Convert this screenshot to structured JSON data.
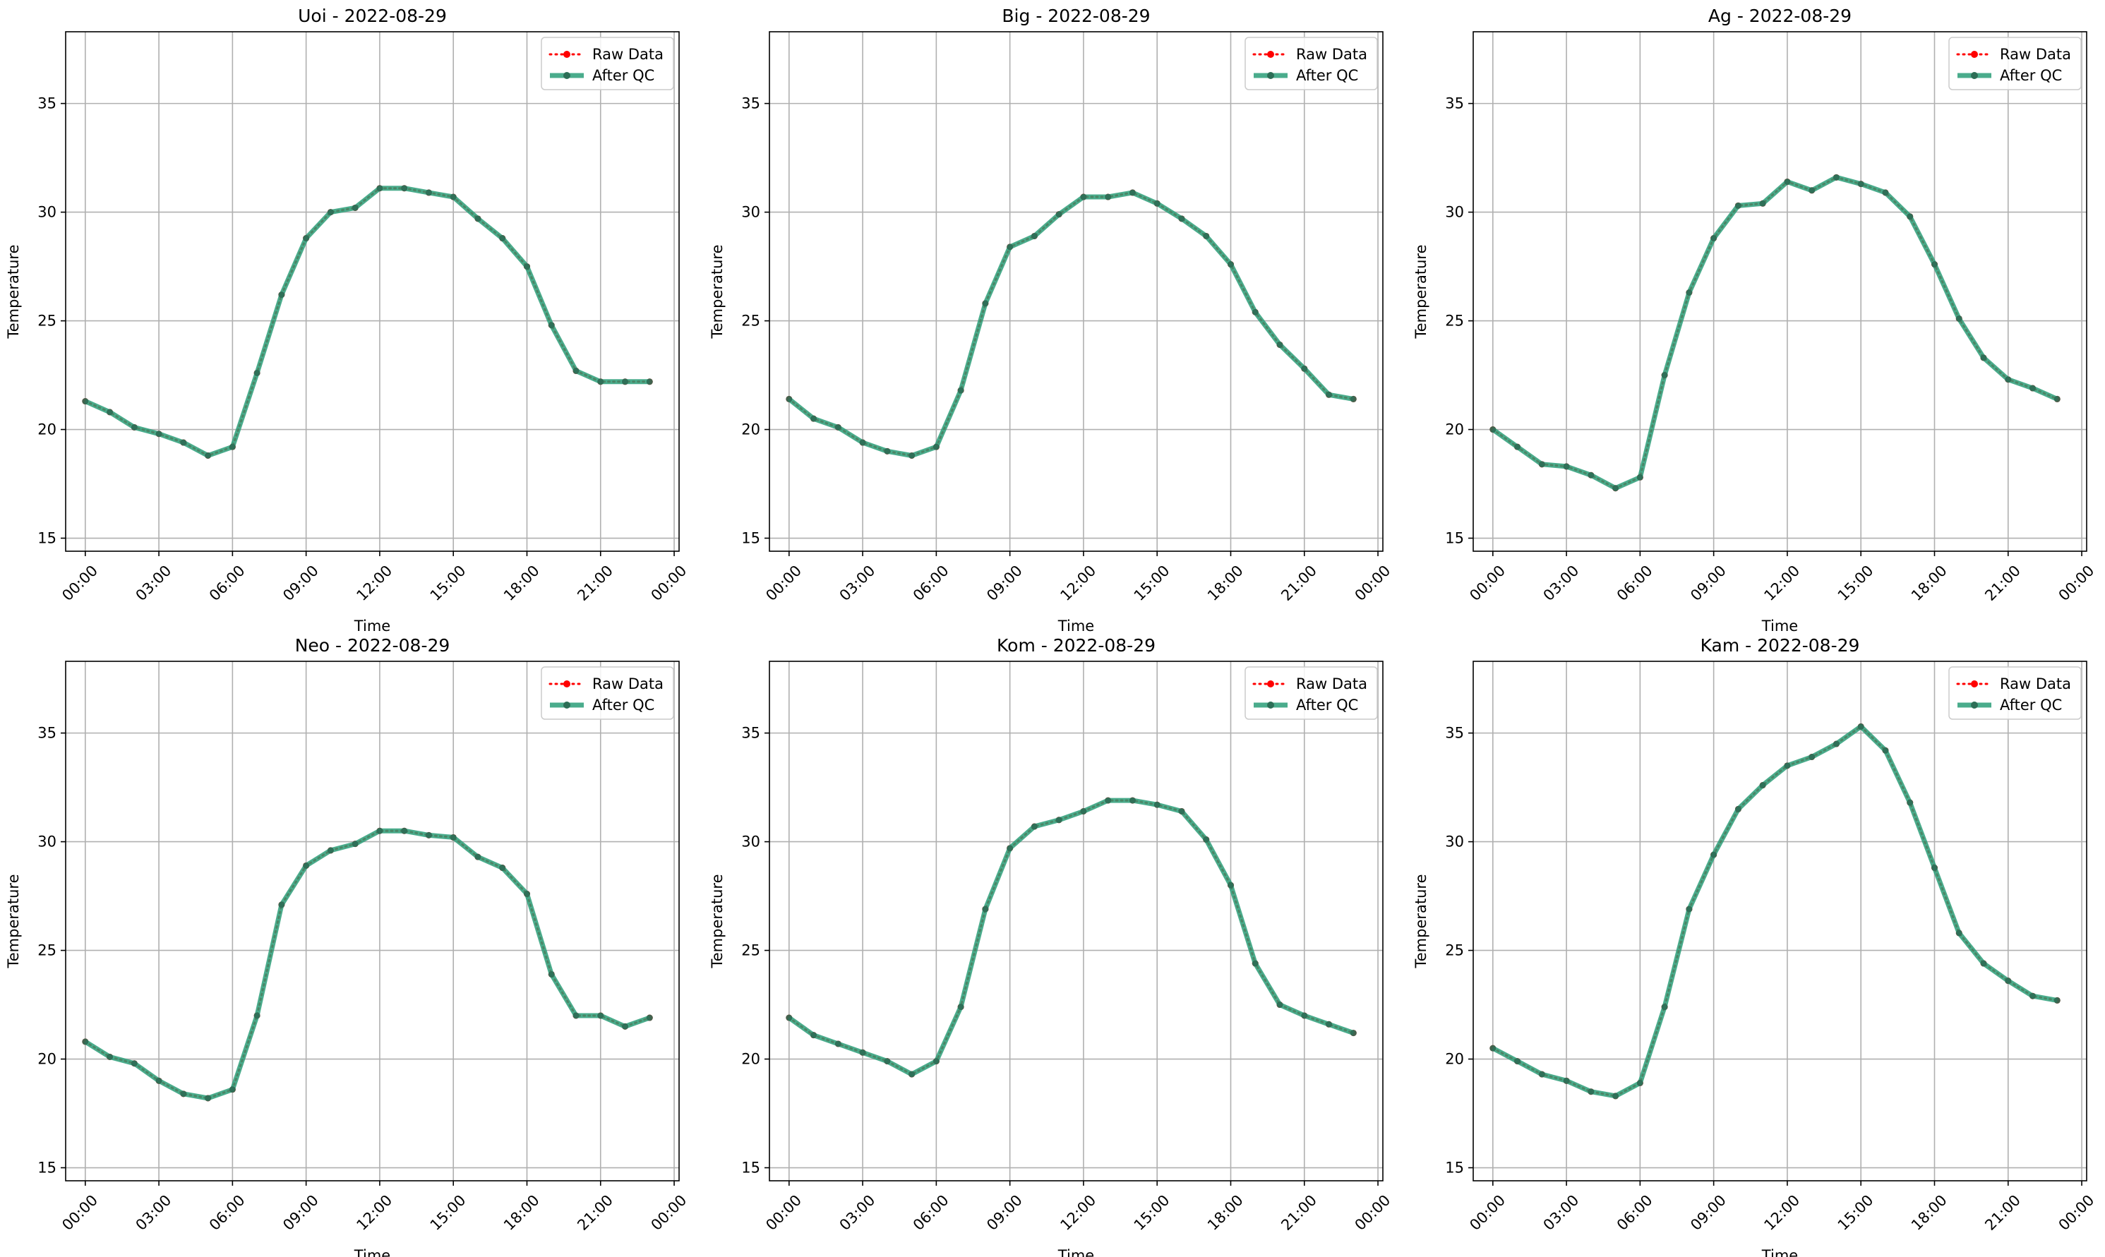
{
  "colors": {
    "raw": "#ff0000",
    "qc": "#2a9d78",
    "grid": "#b0b0b0",
    "axes": "#000000"
  },
  "chart_data": [
    {
      "type": "line",
      "title": "Uoi - 2022-08-29",
      "xlabel": "Time",
      "ylabel": "Temperature",
      "ylim": [
        14.4,
        38.3
      ],
      "yticks": [
        15,
        20,
        25,
        30,
        35
      ],
      "xlim": [
        -0.8,
        24.2
      ],
      "xticks": [
        0,
        3,
        6,
        9,
        12,
        15,
        18,
        21,
        24
      ],
      "xtick_labels": [
        "00:00",
        "03:00",
        "06:00",
        "09:00",
        "12:00",
        "15:00",
        "18:00",
        "21:00",
        "00:00"
      ],
      "grid": true,
      "legend": "upper-right",
      "x": [
        0,
        1,
        2,
        3,
        4,
        5,
        6,
        7,
        8,
        9,
        10,
        11,
        12,
        13,
        14,
        15,
        16,
        17,
        18,
        19,
        20,
        21,
        22,
        23
      ],
      "series": [
        {
          "name": "Raw Data",
          "values": [
            21.3,
            20.8,
            20.1,
            19.8,
            19.4,
            18.8,
            19.2,
            22.6,
            26.2,
            28.8,
            30.0,
            30.2,
            31.1,
            31.1,
            30.9,
            30.7,
            29.7,
            28.8,
            27.5,
            24.8,
            22.7,
            22.2,
            22.2,
            22.2
          ]
        },
        {
          "name": "After QC",
          "values": [
            21.3,
            20.8,
            20.1,
            19.8,
            19.4,
            18.8,
            19.2,
            22.6,
            26.2,
            28.8,
            30.0,
            30.2,
            31.1,
            31.1,
            30.9,
            30.7,
            29.7,
            28.8,
            27.5,
            24.8,
            22.7,
            22.2,
            22.2,
            22.2
          ]
        }
      ]
    },
    {
      "type": "line",
      "title": "Big - 2022-08-29",
      "xlabel": "Time",
      "ylabel": "Temperature",
      "ylim": [
        14.4,
        38.3
      ],
      "yticks": [
        15,
        20,
        25,
        30,
        35
      ],
      "xlim": [
        -0.8,
        24.2
      ],
      "xticks": [
        0,
        3,
        6,
        9,
        12,
        15,
        18,
        21,
        24
      ],
      "xtick_labels": [
        "00:00",
        "03:00",
        "06:00",
        "09:00",
        "12:00",
        "15:00",
        "18:00",
        "21:00",
        "00:00"
      ],
      "grid": true,
      "legend": "upper-right",
      "x": [
        0,
        1,
        2,
        3,
        4,
        5,
        6,
        7,
        8,
        9,
        10,
        11,
        12,
        13,
        14,
        15,
        16,
        17,
        18,
        19,
        20,
        21,
        22,
        23
      ],
      "series": [
        {
          "name": "Raw Data",
          "values": [
            21.4,
            20.5,
            20.1,
            19.4,
            19.0,
            18.8,
            19.2,
            21.8,
            25.8,
            28.4,
            28.9,
            29.9,
            30.7,
            30.7,
            30.9,
            30.4,
            29.7,
            28.9,
            27.6,
            25.4,
            23.9,
            22.8,
            21.6,
            21.4
          ]
        },
        {
          "name": "After QC",
          "values": [
            21.4,
            20.5,
            20.1,
            19.4,
            19.0,
            18.8,
            19.2,
            21.8,
            25.8,
            28.4,
            28.9,
            29.9,
            30.7,
            30.7,
            30.9,
            30.4,
            29.7,
            28.9,
            27.6,
            25.4,
            23.9,
            22.8,
            21.6,
            21.4
          ]
        }
      ]
    },
    {
      "type": "line",
      "title": "Ag - 2022-08-29",
      "xlabel": "Time",
      "ylabel": "Temperature",
      "ylim": [
        14.4,
        38.3
      ],
      "yticks": [
        15,
        20,
        25,
        30,
        35
      ],
      "xlim": [
        -0.8,
        24.2
      ],
      "xticks": [
        0,
        3,
        6,
        9,
        12,
        15,
        18,
        21,
        24
      ],
      "xtick_labels": [
        "00:00",
        "03:00",
        "06:00",
        "09:00",
        "12:00",
        "15:00",
        "18:00",
        "21:00",
        "00:00"
      ],
      "grid": true,
      "legend": "upper-right",
      "x": [
        0,
        1,
        2,
        3,
        4,
        5,
        6,
        7,
        8,
        9,
        10,
        11,
        12,
        13,
        14,
        15,
        16,
        17,
        18,
        19,
        20,
        21,
        22,
        23
      ],
      "series": [
        {
          "name": "Raw Data",
          "values": [
            20.0,
            19.2,
            18.4,
            18.3,
            17.9,
            17.3,
            17.8,
            22.5,
            26.3,
            28.8,
            30.3,
            30.4,
            31.4,
            31.0,
            31.6,
            31.3,
            30.9,
            29.8,
            27.6,
            25.1,
            23.3,
            22.3,
            21.9,
            21.4
          ]
        },
        {
          "name": "After QC",
          "values": [
            20.0,
            19.2,
            18.4,
            18.3,
            17.9,
            17.3,
            17.8,
            22.5,
            26.3,
            28.8,
            30.3,
            30.4,
            31.4,
            31.0,
            31.6,
            31.3,
            30.9,
            29.8,
            27.6,
            25.1,
            23.3,
            22.3,
            21.9,
            21.4
          ]
        }
      ]
    },
    {
      "type": "line",
      "title": "Neo - 2022-08-29",
      "xlabel": "Time",
      "ylabel": "Temperature",
      "ylim": [
        14.4,
        38.3
      ],
      "yticks": [
        15,
        20,
        25,
        30,
        35
      ],
      "xlim": [
        -0.8,
        24.2
      ],
      "xticks": [
        0,
        3,
        6,
        9,
        12,
        15,
        18,
        21,
        24
      ],
      "xtick_labels": [
        "00:00",
        "03:00",
        "06:00",
        "09:00",
        "12:00",
        "15:00",
        "18:00",
        "21:00",
        "00:00"
      ],
      "grid": true,
      "legend": "upper-right",
      "x": [
        0,
        1,
        2,
        3,
        4,
        5,
        6,
        7,
        8,
        9,
        10,
        11,
        12,
        13,
        14,
        15,
        16,
        17,
        18,
        19,
        20,
        21,
        22,
        23
      ],
      "series": [
        {
          "name": "Raw Data",
          "values": [
            20.8,
            20.1,
            19.8,
            19.0,
            18.4,
            18.2,
            18.6,
            22.0,
            27.1,
            28.9,
            29.6,
            29.9,
            30.5,
            30.5,
            30.3,
            30.2,
            29.3,
            28.8,
            27.6,
            23.9,
            22.0,
            22.0,
            21.5,
            21.9
          ]
        },
        {
          "name": "After QC",
          "values": [
            20.8,
            20.1,
            19.8,
            19.0,
            18.4,
            18.2,
            18.6,
            22.0,
            27.1,
            28.9,
            29.6,
            29.9,
            30.5,
            30.5,
            30.3,
            30.2,
            29.3,
            28.8,
            27.6,
            23.9,
            22.0,
            22.0,
            21.5,
            21.9
          ]
        }
      ]
    },
    {
      "type": "line",
      "title": "Kom - 2022-08-29",
      "xlabel": "Time",
      "ylabel": "Temperature",
      "ylim": [
        14.4,
        38.3
      ],
      "yticks": [
        15,
        20,
        25,
        30,
        35
      ],
      "xlim": [
        -0.8,
        24.2
      ],
      "xticks": [
        0,
        3,
        6,
        9,
        12,
        15,
        18,
        21,
        24
      ],
      "xtick_labels": [
        "00:00",
        "03:00",
        "06:00",
        "09:00",
        "12:00",
        "15:00",
        "18:00",
        "21:00",
        "00:00"
      ],
      "grid": true,
      "legend": "upper-right",
      "x": [
        0,
        1,
        2,
        3,
        4,
        5,
        6,
        7,
        8,
        9,
        10,
        11,
        12,
        13,
        14,
        15,
        16,
        17,
        18,
        19,
        20,
        21,
        22,
        23
      ],
      "series": [
        {
          "name": "Raw Data",
          "values": [
            21.9,
            21.1,
            20.7,
            20.3,
            19.9,
            19.3,
            19.9,
            22.4,
            26.9,
            29.7,
            30.7,
            31.0,
            31.4,
            31.9,
            31.9,
            31.7,
            31.4,
            30.1,
            28.0,
            24.4,
            22.5,
            22.0,
            21.6,
            21.2
          ]
        },
        {
          "name": "After QC",
          "values": [
            21.9,
            21.1,
            20.7,
            20.3,
            19.9,
            19.3,
            19.9,
            22.4,
            26.9,
            29.7,
            30.7,
            31.0,
            31.4,
            31.9,
            31.9,
            31.7,
            31.4,
            30.1,
            28.0,
            24.4,
            22.5,
            22.0,
            21.6,
            21.2
          ]
        }
      ]
    },
    {
      "type": "line",
      "title": "Kam - 2022-08-29",
      "xlabel": "Time",
      "ylabel": "Temperature",
      "ylim": [
        14.4,
        38.3
      ],
      "yticks": [
        15,
        20,
        25,
        30,
        35
      ],
      "xlim": [
        -0.8,
        24.2
      ],
      "xticks": [
        0,
        3,
        6,
        9,
        12,
        15,
        18,
        21,
        24
      ],
      "xtick_labels": [
        "00:00",
        "03:00",
        "06:00",
        "09:00",
        "12:00",
        "15:00",
        "18:00",
        "21:00",
        "00:00"
      ],
      "grid": true,
      "legend": "upper-right",
      "x": [
        0,
        1,
        2,
        3,
        4,
        5,
        6,
        7,
        8,
        9,
        10,
        11,
        12,
        13,
        14,
        15,
        16,
        17,
        18,
        19,
        20,
        21,
        22,
        23
      ],
      "series": [
        {
          "name": "Raw Data",
          "values": [
            20.5,
            19.9,
            19.3,
            19.0,
            18.5,
            18.3,
            18.9,
            22.4,
            26.9,
            29.4,
            31.5,
            32.6,
            33.5,
            33.9,
            34.5,
            35.3,
            34.2,
            31.8,
            28.8,
            25.8,
            24.4,
            23.6,
            22.9,
            22.7
          ]
        },
        {
          "name": "After QC",
          "values": [
            20.5,
            19.9,
            19.3,
            19.0,
            18.5,
            18.3,
            18.9,
            22.4,
            26.9,
            29.4,
            31.5,
            32.6,
            33.5,
            33.9,
            34.5,
            35.3,
            34.2,
            31.8,
            28.8,
            25.8,
            24.4,
            23.6,
            22.9,
            22.7
          ]
        }
      ]
    }
  ]
}
